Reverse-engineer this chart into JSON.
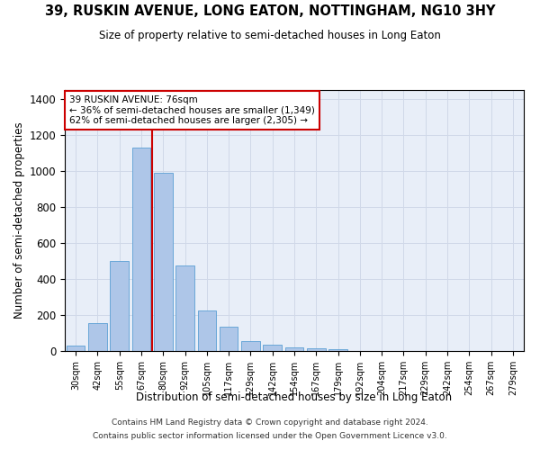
{
  "title": "39, RUSKIN AVENUE, LONG EATON, NOTTINGHAM, NG10 3HY",
  "subtitle": "Size of property relative to semi-detached houses in Long Eaton",
  "xlabel": "Distribution of semi-detached houses by size in Long Eaton",
  "ylabel": "Number of semi-detached properties",
  "annotation_line1": "39 RUSKIN AVENUE: 76sqm",
  "annotation_line2": "← 36% of semi-detached houses are smaller (1,349)",
  "annotation_line3": "62% of semi-detached houses are larger (2,305) →",
  "footer_line1": "Contains HM Land Registry data © Crown copyright and database right 2024.",
  "footer_line2": "Contains public sector information licensed under the Open Government Licence v3.0.",
  "bar_color": "#aec6e8",
  "bar_edge_color": "#5a9fd4",
  "grid_color": "#d0d8e8",
  "annotation_box_color": "#ffffff",
  "annotation_box_edge": "#cc0000",
  "vline_color": "#cc0000",
  "background_color": "#e8eef8",
  "categories": [
    "30sqm",
    "42sqm",
    "55sqm",
    "67sqm",
    "80sqm",
    "92sqm",
    "105sqm",
    "117sqm",
    "129sqm",
    "142sqm",
    "154sqm",
    "167sqm",
    "179sqm",
    "192sqm",
    "204sqm",
    "217sqm",
    "229sqm",
    "242sqm",
    "254sqm",
    "267sqm",
    "279sqm"
  ],
  "values": [
    30,
    155,
    500,
    1130,
    990,
    475,
    225,
    135,
    55,
    35,
    22,
    15,
    10,
    0,
    0,
    0,
    0,
    0,
    0,
    0,
    0
  ],
  "ylim": [
    0,
    1450
  ],
  "yticks": [
    0,
    200,
    400,
    600,
    800,
    1000,
    1200,
    1400
  ],
  "vline_x": 3.5
}
